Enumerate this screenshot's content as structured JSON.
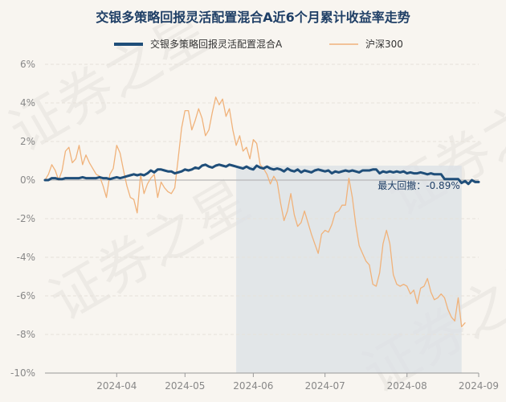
{
  "chart_data": {
    "type": "line",
    "title": "交银多策略回报灵活配置混合A近6个月累计收益率走势",
    "xlabel": "",
    "ylabel": "",
    "ylim": [
      -10,
      6
    ],
    "y_ticks": [
      "6%",
      "4%",
      "2%",
      "0%",
      "-2%",
      "-4%",
      "-6%",
      "-8%",
      "-10%"
    ],
    "y_tick_values": [
      6,
      4,
      2,
      0,
      -2,
      -4,
      -6,
      -8,
      -10
    ],
    "x_range": [
      0,
      127
    ],
    "x_tick_labels": [
      "2024-04",
      "2024-05",
      "2024-06",
      "2024-07",
      "2024-08",
      "2024-09"
    ],
    "x_tick_values": [
      21,
      41,
      61,
      82,
      106,
      127
    ],
    "grid": true,
    "legend_position": "top",
    "max_drawdown": {
      "label": "最大回撤：-0.89%",
      "start_index": 56,
      "end_index": 122
    },
    "watermark": "证券之星",
    "series": [
      {
        "name": "交银多策略回报灵活配置混合A",
        "color": "#1f4e79",
        "values": [
          0,
          0,
          0.1,
          0.1,
          0.05,
          0.05,
          0.1,
          0.1,
          0.1,
          0.1,
          0.1,
          0.15,
          0.1,
          0.1,
          0.1,
          0.1,
          0.15,
          0.1,
          0.1,
          0.05,
          0.1,
          0.15,
          0.1,
          0.15,
          0.2,
          0.25,
          0.3,
          0.25,
          0.3,
          0.25,
          0.35,
          0.5,
          0.4,
          0.55,
          0.55,
          0.5,
          0.45,
          0.45,
          0.35,
          0.4,
          0.45,
          0.55,
          0.5,
          0.55,
          0.65,
          0.6,
          0.75,
          0.8,
          0.7,
          0.65,
          0.75,
          0.8,
          0.75,
          0.7,
          0.8,
          0.75,
          0.7,
          0.65,
          0.6,
          0.7,
          0.6,
          0.55,
          0.75,
          0.65,
          0.6,
          0.7,
          0.6,
          0.55,
          0.6,
          0.55,
          0.45,
          0.6,
          0.5,
          0.45,
          0.55,
          0.4,
          0.5,
          0.45,
          0.4,
          0.5,
          0.55,
          0.5,
          0.45,
          0.5,
          0.35,
          0.45,
          0.4,
          0.45,
          0.5,
          0.45,
          0.5,
          0.45,
          0.4,
          0.5,
          0.5,
          0.5,
          0.55,
          0.55,
          0.35,
          0.45,
          0.4,
          0.45,
          0.4,
          0.45,
          0.4,
          0.45,
          0.35,
          0.4,
          0.35,
          0.35,
          0.4,
          0.35,
          0.3,
          0.35,
          0.3,
          0.3,
          0.3,
          0.05,
          0.05,
          0.05,
          0.05,
          0.05,
          -0.15,
          -0.05,
          -0.2,
          0,
          -0.1,
          -0.1
        ]
      },
      {
        "name": "沪深300",
        "color": "#f0b27a",
        "values": [
          0,
          0.3,
          0.8,
          0.5,
          0,
          0.5,
          1.5,
          1.7,
          0.9,
          1.1,
          1.8,
          0.8,
          1.3,
          0.9,
          0.6,
          0.3,
          0.2,
          -0.3,
          -0.9,
          0.3,
          0.6,
          1.8,
          1.4,
          0.5,
          -0.3,
          -0.9,
          -1,
          -1.7,
          0.3,
          -0.7,
          -0.2,
          0.1,
          0.3,
          -0.9,
          -0.1,
          -0.4,
          -0.6,
          -0.7,
          -0.4,
          1.1,
          2.7,
          3.6,
          3.6,
          2.6,
          3.1,
          3.7,
          3.2,
          2.3,
          2.6,
          3.5,
          4.3,
          3.9,
          4.2,
          3.3,
          3.7,
          2.6,
          1.8,
          2.3,
          1.5,
          1.7,
          1.1,
          2.1,
          1.9,
          0.8,
          0.6,
          0.3,
          -0.2,
          0.2,
          -0.1,
          -1.2,
          -2.1,
          -1.6,
          -0.7,
          -1.8,
          -2.4,
          -2.2,
          -1.6,
          -2.2,
          -2.8,
          -3.3,
          -3.8,
          -2.8,
          -2.6,
          -2.7,
          -2.3,
          -1.7,
          -1.6,
          -1.3,
          -1.3,
          0.1,
          -0.9,
          -2.3,
          -3.4,
          -3.8,
          -4.2,
          -4.4,
          -5.4,
          -5.5,
          -4.8,
          -3.3,
          -2.6,
          -3.3,
          -4.9,
          -5.4,
          -5.5,
          -5.4,
          -5.5,
          -5.9,
          -5.7,
          -6.4,
          -5.6,
          -5.5,
          -5.1,
          -5.8,
          -6.2,
          -6.1,
          -5.9,
          -6.1,
          -6.7,
          -7.1,
          -7.3,
          -6.1,
          -7.6,
          -7.4
        ]
      }
    ]
  }
}
